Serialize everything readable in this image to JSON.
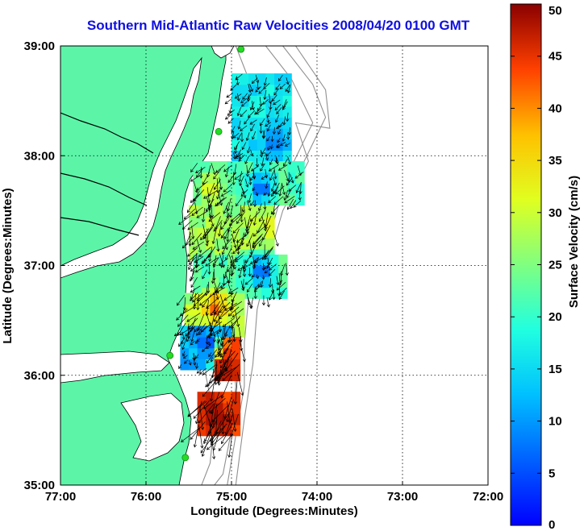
{
  "title": "Southern Mid-Atlantic Raw Velocities 2008/04/20 0100 GMT",
  "map": {
    "xlabel": "Longitude (Degrees:Minutes)",
    "ylabel": "Latitude (Degrees:Minutes)",
    "lon_range": [
      -77,
      -72
    ],
    "lat_range": [
      35,
      39
    ],
    "lon_ticks": [
      {
        "value": -77,
        "label": "77:00"
      },
      {
        "value": -76,
        "label": "76:00"
      },
      {
        "value": -75,
        "label": "75:00"
      },
      {
        "value": -74,
        "label": "74:00"
      },
      {
        "value": -73,
        "label": "73:00"
      },
      {
        "value": -72,
        "label": "72:00"
      }
    ],
    "lat_ticks": [
      {
        "value": 39,
        "label": "39:00"
      },
      {
        "value": 38,
        "label": "38:00"
      },
      {
        "value": 37,
        "label": "37:00"
      },
      {
        "value": 36,
        "label": "36:00"
      },
      {
        "value": 35,
        "label": "35:00"
      }
    ],
    "grid": "dotted",
    "land_color": "#5cf5a8",
    "contour_color": "#909090",
    "station_color": "#22dd22",
    "stations": [
      {
        "lon": -74.89,
        "lat": 38.97
      },
      {
        "lon": -75.15,
        "lat": 38.22
      },
      {
        "lon": -75.72,
        "lat": 36.18
      },
      {
        "lon": -75.54,
        "lat": 35.25
      }
    ]
  },
  "colorbar": {
    "label": "Surface Velocity (cm/s)",
    "range": [
      0,
      50
    ],
    "ticks": [
      {
        "value": 50,
        "label": "50"
      },
      {
        "value": 45,
        "label": "45"
      },
      {
        "value": 40,
        "label": "40"
      },
      {
        "value": 35,
        "label": "35"
      },
      {
        "value": 30,
        "label": "30"
      },
      {
        "value": 25,
        "label": "25"
      },
      {
        "value": 20,
        "label": "20"
      },
      {
        "value": 15,
        "label": "15"
      },
      {
        "value": 10,
        "label": "10"
      },
      {
        "value": 5,
        "label": "5"
      },
      {
        "value": 0,
        "label": "0"
      }
    ],
    "colormap": "jet"
  },
  "chart_data": {
    "type": "heatmap",
    "cell_size_deg": 0.1,
    "description_units": "velocity cm/s",
    "regions": [
      {
        "lon": [
          -75.0,
          -74.3
        ],
        "lat": [
          37.95,
          38.7
        ],
        "value": 16
      },
      {
        "lon": [
          -75.45,
          -74.2
        ],
        "lat": [
          37.55,
          37.95
        ],
        "value": 22
      },
      {
        "lon": [
          -75.5,
          -74.5
        ],
        "lat": [
          37.05,
          37.55
        ],
        "value": 27
      },
      {
        "lon": [
          -75.45,
          -74.4
        ],
        "lat": [
          36.7,
          37.05
        ],
        "value": 22
      },
      {
        "lon": [
          -75.55,
          -74.9
        ],
        "lat": [
          36.35,
          36.7
        ],
        "value": 28
      },
      {
        "lon": [
          -75.6,
          -75.05
        ],
        "lat": [
          36.05,
          36.45
        ],
        "value": 12
      },
      {
        "lon": [
          -75.2,
          -74.95
        ],
        "lat": [
          35.95,
          36.3
        ],
        "value": 45
      },
      {
        "lon": [
          -75.4,
          -74.9
        ],
        "lat": [
          35.45,
          35.85
        ],
        "value": 44
      }
    ],
    "hotspots": [
      {
        "lon": -74.5,
        "lat": 38.1,
        "value": 8
      },
      {
        "lon": -74.65,
        "lat": 37.7,
        "value": 6
      },
      {
        "lon": -74.65,
        "lat": 36.95,
        "value": 6
      },
      {
        "lon": -75.25,
        "lat": 36.3,
        "value": 5
      },
      {
        "lon": -75.25,
        "lat": 37.7,
        "value": 32
      },
      {
        "lon": -74.5,
        "lat": 37.35,
        "value": 33
      },
      {
        "lon": -75.2,
        "lat": 36.6,
        "value": 42
      },
      {
        "lon": -75.1,
        "lat": 36.0,
        "value": 48
      },
      {
        "lon": -75.2,
        "lat": 35.65,
        "value": 49
      }
    ],
    "vectors": {
      "spacing_deg": 0.07,
      "mean_direction_deg": 200,
      "scale_px_per_cms": 0.9
    }
  }
}
